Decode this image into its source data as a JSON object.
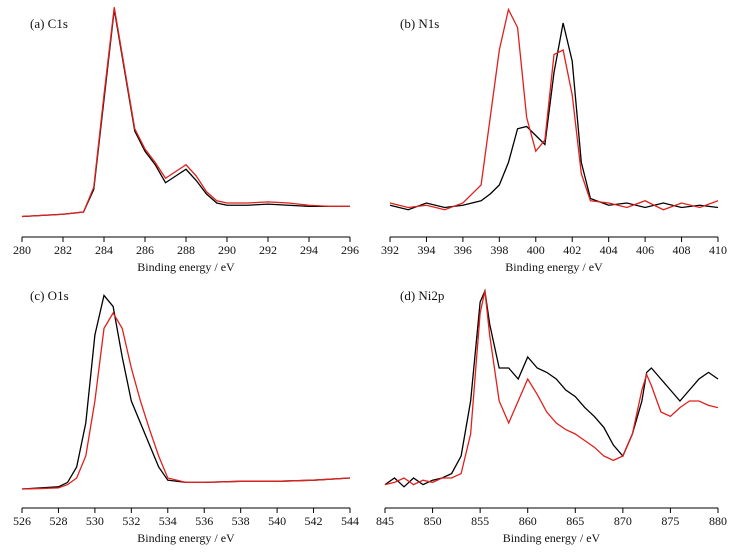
{
  "chart_data": [
    {
      "type": "line",
      "title": "(a) C1s",
      "x_label": "Binding energy / eV",
      "x": [
        280,
        281,
        282,
        283,
        283.5,
        284,
        284.5,
        285,
        285.5,
        286,
        286.5,
        287,
        287.5,
        288,
        288.5,
        289,
        289.5,
        290,
        291,
        292,
        293,
        294,
        295,
        296
      ],
      "series": [
        {
          "color": "#000000",
          "values": [
            0.06,
            0.065,
            0.07,
            0.08,
            0.18,
            0.58,
            0.98,
            0.71,
            0.44,
            0.35,
            0.29,
            0.21,
            0.24,
            0.27,
            0.22,
            0.16,
            0.12,
            0.11,
            0.11,
            0.115,
            0.11,
            0.105,
            0.105,
            0.105
          ]
        },
        {
          "color": "#e0201c",
          "values": [
            0.06,
            0.065,
            0.07,
            0.08,
            0.19,
            0.6,
            0.99,
            0.72,
            0.45,
            0.36,
            0.3,
            0.23,
            0.26,
            0.29,
            0.24,
            0.17,
            0.13,
            0.12,
            0.12,
            0.125,
            0.12,
            0.11,
            0.105,
            0.105
          ]
        }
      ],
      "xlim": [
        280,
        296
      ],
      "xticks": [
        280,
        282,
        284,
        286,
        288,
        290,
        292,
        294,
        296
      ],
      "ylim": [
        0,
        1
      ]
    },
    {
      "type": "line",
      "title": "(b) N1s",
      "x_label": "Binding energy / eV",
      "x": [
        392,
        393,
        394,
        395,
        396,
        397,
        397.5,
        398,
        398.5,
        399,
        399.5,
        400,
        400.5,
        401,
        401.5,
        402,
        402.5,
        403,
        404,
        405,
        406,
        407,
        408,
        409,
        410
      ],
      "series": [
        {
          "color": "#000000",
          "values": [
            0.11,
            0.09,
            0.12,
            0.1,
            0.11,
            0.13,
            0.16,
            0.2,
            0.3,
            0.45,
            0.46,
            0.42,
            0.38,
            0.7,
            0.92,
            0.75,
            0.3,
            0.14,
            0.11,
            0.12,
            0.1,
            0.12,
            0.1,
            0.11,
            0.1
          ]
        },
        {
          "color": "#e0201c",
          "values": [
            0.12,
            0.1,
            0.11,
            0.09,
            0.12,
            0.2,
            0.5,
            0.8,
            0.98,
            0.9,
            0.5,
            0.35,
            0.4,
            0.78,
            0.8,
            0.6,
            0.25,
            0.13,
            0.12,
            0.1,
            0.13,
            0.09,
            0.12,
            0.1,
            0.13
          ]
        }
      ],
      "xlim": [
        392,
        410
      ],
      "xticks": [
        392,
        394,
        396,
        398,
        400,
        402,
        404,
        406,
        408,
        410
      ],
      "ylim": [
        0,
        1
      ]
    },
    {
      "type": "line",
      "title": "(c) O1s",
      "x_label": "Binding energy / eV",
      "x": [
        526,
        527,
        528,
        528.5,
        529,
        529.5,
        530,
        530.5,
        531,
        531.5,
        532,
        532.5,
        533,
        533.5,
        534,
        535,
        536,
        538,
        540,
        542,
        544
      ],
      "series": [
        {
          "color": "#000000",
          "values": [
            0.05,
            0.055,
            0.06,
            0.08,
            0.15,
            0.35,
            0.75,
            0.93,
            0.88,
            0.65,
            0.45,
            0.35,
            0.25,
            0.15,
            0.09,
            0.08,
            0.08,
            0.085,
            0.085,
            0.09,
            0.1
          ]
        },
        {
          "color": "#e0201c",
          "values": [
            0.05,
            0.052,
            0.055,
            0.07,
            0.1,
            0.2,
            0.45,
            0.78,
            0.85,
            0.78,
            0.6,
            0.45,
            0.32,
            0.2,
            0.1,
            0.08,
            0.08,
            0.085,
            0.085,
            0.09,
            0.1
          ]
        }
      ],
      "xlim": [
        526,
        544
      ],
      "xticks": [
        526,
        528,
        530,
        532,
        534,
        536,
        538,
        540,
        542,
        544
      ],
      "ylim": [
        0,
        1
      ]
    },
    {
      "type": "line",
      "title": "(d) Ni2p",
      "x_label": "Binding energy / eV",
      "x": [
        845,
        846,
        847,
        848,
        849,
        850,
        851,
        852,
        853,
        854,
        855,
        855.5,
        856,
        857,
        858,
        859,
        860,
        861,
        862,
        863,
        864,
        865,
        866,
        867,
        868,
        869,
        870,
        871,
        872,
        872.5,
        873,
        874,
        875,
        876,
        877,
        878,
        879,
        880
      ],
      "series": [
        {
          "color": "#000000",
          "values": [
            0.07,
            0.1,
            0.06,
            0.1,
            0.07,
            0.09,
            0.1,
            0.12,
            0.2,
            0.45,
            0.9,
            0.95,
            0.8,
            0.6,
            0.6,
            0.55,
            0.65,
            0.6,
            0.58,
            0.55,
            0.5,
            0.47,
            0.42,
            0.38,
            0.33,
            0.25,
            0.2,
            0.3,
            0.45,
            0.58,
            0.6,
            0.55,
            0.5,
            0.45,
            0.5,
            0.55,
            0.58,
            0.55
          ]
        },
        {
          "color": "#e0201c",
          "values": [
            0.07,
            0.08,
            0.1,
            0.07,
            0.09,
            0.08,
            0.1,
            0.1,
            0.12,
            0.3,
            0.85,
            0.95,
            0.75,
            0.45,
            0.35,
            0.45,
            0.55,
            0.48,
            0.4,
            0.35,
            0.32,
            0.3,
            0.27,
            0.24,
            0.2,
            0.18,
            0.2,
            0.3,
            0.5,
            0.57,
            0.52,
            0.4,
            0.38,
            0.42,
            0.45,
            0.45,
            0.43,
            0.42
          ]
        }
      ],
      "xlim": [
        845,
        880
      ],
      "xticks": [
        845,
        850,
        855,
        860,
        865,
        870,
        875,
        880
      ],
      "ylim": [
        0,
        1
      ]
    }
  ]
}
